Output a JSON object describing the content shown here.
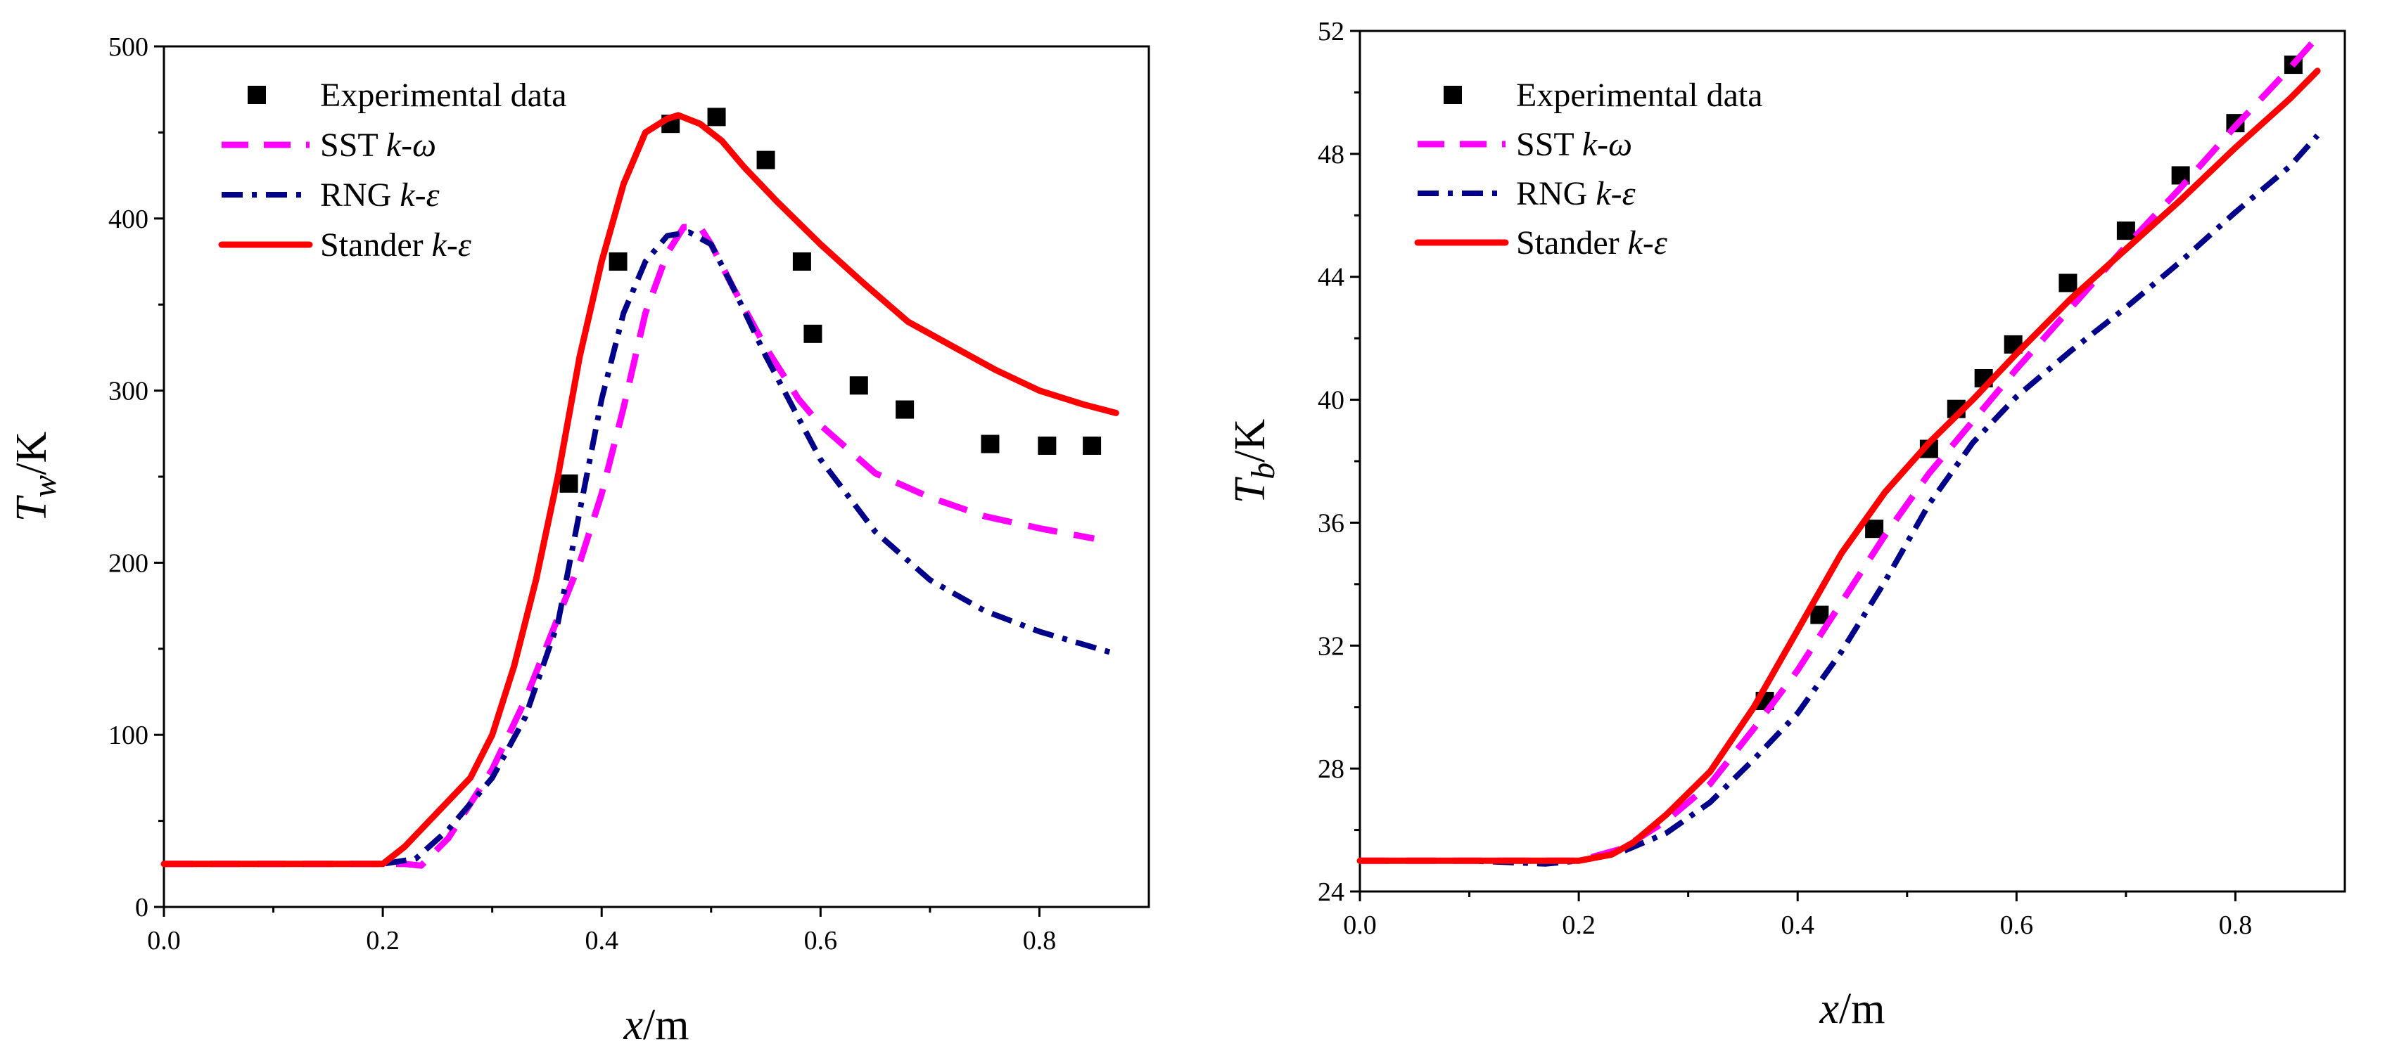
{
  "figure": {
    "colors": {
      "experimental": "#000000",
      "sst": "#ff00ff",
      "rng": "#00008b",
      "stander": "#ff0000"
    }
  },
  "chart_data": [
    {
      "type": "line",
      "id": "left",
      "title": "",
      "xlabel": {
        "var": "x",
        "unit": "/m"
      },
      "ylabel": {
        "var": "T",
        "sub": "w",
        "unit": "/K"
      },
      "xlim": [
        0.0,
        0.9
      ],
      "ylim": [
        0,
        500
      ],
      "xticks": [
        0.0,
        0.2,
        0.4,
        0.6,
        0.8
      ],
      "xtick_labels": [
        "0.0",
        "0.2",
        "0.4",
        "0.6",
        "0.8"
      ],
      "yticks": [
        0,
        100,
        200,
        300,
        400,
        500
      ],
      "ytick_labels": [
        "0",
        "100",
        "200",
        "300",
        "400",
        "500"
      ],
      "legend_position": "top-left",
      "legend": [
        {
          "key": "exp",
          "label": "Experimental data",
          "italic": ""
        },
        {
          "key": "sst",
          "label": "SST ",
          "italic": "k-ω"
        },
        {
          "key": "rng",
          "label": "RNG ",
          "italic": "k-ε"
        },
        {
          "key": "std",
          "label": "Stander ",
          "italic": "k-ε"
        }
      ],
      "series": [
        {
          "key": "exp",
          "name": "Experimental data",
          "style": "markers",
          "x": [
            0.37,
            0.415,
            0.463,
            0.505,
            0.55,
            0.583,
            0.593,
            0.635,
            0.677,
            0.755,
            0.807,
            0.848
          ],
          "y": [
            246,
            375,
            455,
            459,
            434,
            375,
            333,
            303,
            289,
            269,
            268,
            268
          ]
        },
        {
          "key": "sst",
          "name": "SST k-ω",
          "style": "dash",
          "x": [
            0.0,
            0.05,
            0.1,
            0.15,
            0.2,
            0.22,
            0.235,
            0.26,
            0.3,
            0.33,
            0.36,
            0.38,
            0.4,
            0.42,
            0.44,
            0.46,
            0.475,
            0.49,
            0.5,
            0.52,
            0.55,
            0.58,
            0.6,
            0.65,
            0.7,
            0.75,
            0.8,
            0.85
          ],
          "y": [
            25,
            25,
            25,
            25,
            25,
            25,
            24,
            40,
            80,
            120,
            168,
            200,
            240,
            290,
            345,
            380,
            395,
            395,
            385,
            360,
            325,
            295,
            280,
            252,
            238,
            227,
            220,
            214
          ]
        },
        {
          "key": "rng",
          "name": "RNG k-ε",
          "style": "dashdot",
          "x": [
            0.0,
            0.05,
            0.1,
            0.15,
            0.2,
            0.23,
            0.26,
            0.3,
            0.33,
            0.36,
            0.38,
            0.4,
            0.42,
            0.44,
            0.46,
            0.48,
            0.5,
            0.52,
            0.55,
            0.6,
            0.65,
            0.7,
            0.75,
            0.8,
            0.87
          ],
          "y": [
            25,
            25,
            25,
            25,
            25,
            28,
            45,
            75,
            110,
            165,
            230,
            295,
            345,
            375,
            390,
            392,
            385,
            360,
            320,
            260,
            218,
            190,
            172,
            160,
            147
          ]
        },
        {
          "key": "std",
          "name": "Stander k-ε",
          "style": "solid",
          "x": [
            0.0,
            0.05,
            0.1,
            0.15,
            0.2,
            0.22,
            0.25,
            0.28,
            0.3,
            0.32,
            0.34,
            0.36,
            0.38,
            0.4,
            0.42,
            0.44,
            0.46,
            0.47,
            0.49,
            0.51,
            0.53,
            0.56,
            0.6,
            0.64,
            0.68,
            0.72,
            0.76,
            0.8,
            0.84,
            0.87
          ],
          "y": [
            25,
            25,
            25,
            25,
            25,
            35,
            55,
            75,
            100,
            140,
            190,
            250,
            320,
            375,
            420,
            450,
            458,
            460,
            455,
            445,
            430,
            410,
            385,
            362,
            340,
            326,
            312,
            300,
            292,
            287
          ]
        }
      ]
    },
    {
      "type": "line",
      "id": "right",
      "title": "",
      "xlabel": {
        "var": "x",
        "unit": "/m"
      },
      "ylabel": {
        "var": "T",
        "sub": "b",
        "unit": "/K"
      },
      "xlim": [
        0.0,
        0.9
      ],
      "ylim": [
        24,
        52
      ],
      "xticks": [
        0.0,
        0.2,
        0.4,
        0.6,
        0.8
      ],
      "xtick_labels": [
        "0.0",
        "0.2",
        "0.4",
        "0.6",
        "0.8"
      ],
      "yticks": [
        24,
        28,
        32,
        36,
        40,
        44,
        48,
        52
      ],
      "ytick_labels": [
        "24",
        "28",
        "32",
        "36",
        "40",
        "44",
        "48",
        "52"
      ],
      "legend_position": "top-left",
      "legend": [
        {
          "key": "exp",
          "label": "Experimental data",
          "italic": ""
        },
        {
          "key": "sst",
          "label": "SST ",
          "italic": "k-ω"
        },
        {
          "key": "rng",
          "label": "RNG ",
          "italic": "k-ε"
        },
        {
          "key": "std",
          "label": "Stander ",
          "italic": "k-ε"
        }
      ],
      "series": [
        {
          "key": "exp",
          "name": "Experimental data",
          "style": "markers",
          "x": [
            0.37,
            0.42,
            0.47,
            0.52,
            0.545,
            0.57,
            0.597,
            0.647,
            0.7,
            0.75,
            0.8,
            0.853
          ],
          "y": [
            30.2,
            33.0,
            35.8,
            38.4,
            39.7,
            40.7,
            41.8,
            43.8,
            45.5,
            47.3,
            49.0,
            50.9
          ]
        },
        {
          "key": "sst",
          "name": "SST k-ω",
          "style": "dash",
          "x": [
            0.0,
            0.1,
            0.2,
            0.24,
            0.28,
            0.32,
            0.36,
            0.4,
            0.44,
            0.48,
            0.52,
            0.56,
            0.6,
            0.65,
            0.7,
            0.75,
            0.8,
            0.85,
            0.875
          ],
          "y": [
            25,
            25,
            25,
            25.4,
            26.3,
            27.5,
            29.3,
            31.2,
            33.4,
            35.6,
            37.6,
            39.3,
            41.0,
            43.0,
            45.0,
            46.9,
            48.9,
            50.8,
            51.8
          ]
        },
        {
          "key": "rng",
          "name": "RNG k-ε",
          "style": "dashdot",
          "x": [
            0.0,
            0.1,
            0.17,
            0.2,
            0.24,
            0.28,
            0.32,
            0.36,
            0.4,
            0.44,
            0.48,
            0.52,
            0.56,
            0.6,
            0.65,
            0.7,
            0.75,
            0.8,
            0.85,
            0.875
          ],
          "y": [
            25,
            25,
            24.9,
            25,
            25.3,
            25.9,
            26.9,
            28.3,
            29.8,
            31.8,
            34.1,
            36.6,
            38.6,
            40.1,
            41.6,
            43.0,
            44.5,
            46.1,
            47.6,
            48.6
          ]
        },
        {
          "key": "std",
          "name": "Stander k-ε",
          "style": "solid",
          "x": [
            0.0,
            0.1,
            0.2,
            0.23,
            0.25,
            0.28,
            0.32,
            0.36,
            0.4,
            0.44,
            0.48,
            0.52,
            0.56,
            0.6,
            0.65,
            0.7,
            0.75,
            0.8,
            0.85,
            0.875
          ],
          "y": [
            25,
            25,
            25,
            25.2,
            25.6,
            26.5,
            27.9,
            30.0,
            32.5,
            35.0,
            37.0,
            38.6,
            40.0,
            41.5,
            43.3,
            44.9,
            46.5,
            48.2,
            49.8,
            50.7
          ]
        }
      ]
    }
  ]
}
